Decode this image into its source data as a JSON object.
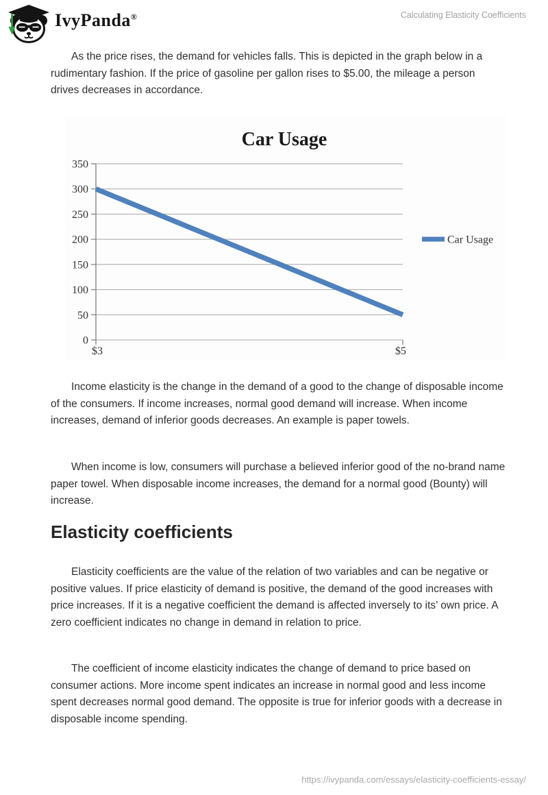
{
  "header": {
    "brand": "IvyPanda",
    "registered_mark": "®",
    "doc_title": "Calculating Elasticity Coefficients"
  },
  "article": {
    "paragraphs": {
      "p1": "As the price rises, the demand for vehicles falls. This is depicted in the graph below in a rudimentary fashion. If the price of gasoline per gallon rises to $5.00, the mileage a person drives decreases in accordance.",
      "p2": "Income elasticity is the change in the demand of a good to the change of disposable income of the consumers. If income increases, normal good demand will increase. When income increases, demand of inferior goods decreases. An example is paper towels.",
      "p3": "When income is low, consumers will purchase a believed inferior good of the no-brand name paper towel. When disposable income increases, the demand for a normal good (Bounty) will increase.",
      "p4": "Elasticity coefficients are the value of the relation of two variables and can be negative or positive values. If price elasticity of demand is positive, the demand of the good increases with price increases. If it is a negative coefficient the demand is affected inversely to its’ own price. A zero coefficient indicates no change in demand in relation to price.",
      "p5": "The coefficient of income elasticity indicates the change of demand to price based on consumer actions. More income spent indicates an increase in normal good and less income spent decreases normal good demand. The opposite is true for inferior goods with a decrease in disposable income spending."
    },
    "heading": "Elasticity coefficients"
  },
  "chart_data": {
    "type": "line",
    "title": "Car Usage",
    "x": [
      "$3",
      "$5"
    ],
    "series": [
      {
        "name": "Car Usage",
        "values": [
          300,
          50
        ],
        "color": "#4f81bd"
      }
    ],
    "ylim": [
      0,
      350
    ],
    "yticks": [
      350,
      300,
      250,
      200,
      150,
      100,
      50,
      0
    ],
    "xlabel": "",
    "ylabel": "",
    "grid": true,
    "legend_position": "right"
  },
  "footer": {
    "url": "https://ivypanda.com/essays/elasticity-coefficients-essay/"
  },
  "colors": {
    "accent_blue": "#4f81bd",
    "gridline": "#a6a6a6",
    "axis": "#7f7f7f",
    "body_text": "#303030",
    "muted_text": "#a1a1a1",
    "logo_green": "#2f9e44"
  }
}
